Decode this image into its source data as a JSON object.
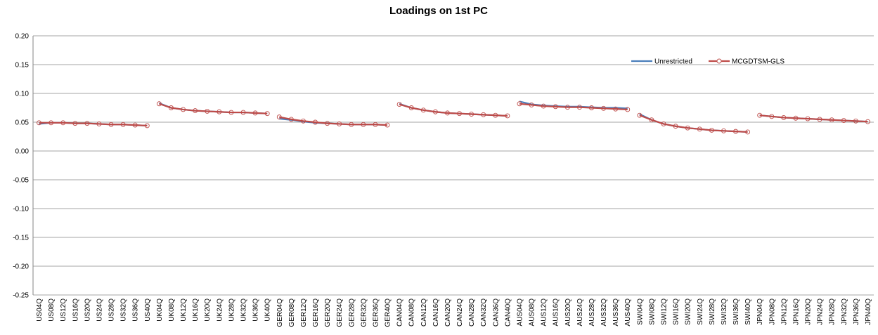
{
  "chart_data": {
    "type": "line",
    "title": "Loadings on 1st PC",
    "categories": [
      "US04Q",
      "US08Q",
      "US12Q",
      "US16Q",
      "US20Q",
      "US24Q",
      "US28Q",
      "US32Q",
      "US36Q",
      "US40Q",
      "UK04Q",
      "UK08Q",
      "UK12Q",
      "UK16Q",
      "UK20Q",
      "UK24Q",
      "UK28Q",
      "UK32Q",
      "UK36Q",
      "UK40Q",
      "GER04Q",
      "GER08Q",
      "GER12Q",
      "GER16Q",
      "GER20Q",
      "GER24Q",
      "GER28Q",
      "GER32Q",
      "GER36Q",
      "GER40Q",
      "CAN04Q",
      "CAN08Q",
      "CAN12Q",
      "CAN16Q",
      "CAN20Q",
      "CAN24Q",
      "CAN28Q",
      "CAN32Q",
      "CAN36Q",
      "CAN40Q",
      "AUS04Q",
      "AUS08Q",
      "AUS12Q",
      "AUS16Q",
      "AUS20Q",
      "AUS24Q",
      "AUS28Q",
      "AUS32Q",
      "AUS36Q",
      "AUS40Q",
      "SWI04Q",
      "SWI08Q",
      "SWI12Q",
      "SWI16Q",
      "SWI20Q",
      "SWI24Q",
      "SWI28Q",
      "SWI32Q",
      "SWI36Q",
      "SWI40Q",
      "JPN04Q",
      "JPN08Q",
      "JPN12Q",
      "JPN16Q",
      "JPN20Q",
      "JPN24Q",
      "JPN28Q",
      "JPN32Q",
      "JPN36Q",
      "JPN40Q"
    ],
    "series": [
      {
        "name": "Unrestricted",
        "color": "#4a7ebb",
        "marker": false,
        "values": [
          0.047,
          0.049,
          0.049,
          0.048,
          0.048,
          0.047,
          0.046,
          0.046,
          0.045,
          0.044,
          0.083,
          0.075,
          0.072,
          0.07,
          0.069,
          0.068,
          0.067,
          0.067,
          0.066,
          0.065,
          0.056,
          0.054,
          0.051,
          0.049,
          0.048,
          0.047,
          0.046,
          0.046,
          0.046,
          0.045,
          0.082,
          0.075,
          0.071,
          0.068,
          0.066,
          0.065,
          0.064,
          0.063,
          0.062,
          0.061,
          0.086,
          0.081,
          0.079,
          0.078,
          0.077,
          0.077,
          0.076,
          0.075,
          0.075,
          0.074,
          0.064,
          0.054,
          0.047,
          0.043,
          0.04,
          0.038,
          0.036,
          0.035,
          0.034,
          0.033,
          0.062,
          0.06,
          0.058,
          0.057,
          0.056,
          0.055,
          0.054,
          0.053,
          0.052,
          0.051
        ]
      },
      {
        "name": "MCGDTSM-GLS",
        "color": "#be4b48",
        "marker": true,
        "values": [
          0.049,
          0.049,
          0.049,
          0.048,
          0.048,
          0.047,
          0.046,
          0.046,
          0.045,
          0.044,
          0.082,
          0.075,
          0.072,
          0.07,
          0.069,
          0.068,
          0.067,
          0.067,
          0.066,
          0.065,
          0.059,
          0.055,
          0.052,
          0.05,
          0.048,
          0.047,
          0.046,
          0.046,
          0.046,
          0.045,
          0.081,
          0.075,
          0.071,
          0.068,
          0.066,
          0.065,
          0.064,
          0.063,
          0.062,
          0.061,
          0.082,
          0.08,
          0.078,
          0.077,
          0.076,
          0.076,
          0.075,
          0.074,
          0.073,
          0.072,
          0.062,
          0.054,
          0.047,
          0.043,
          0.04,
          0.038,
          0.036,
          0.035,
          0.034,
          0.033,
          0.062,
          0.06,
          0.058,
          0.057,
          0.056,
          0.055,
          0.054,
          0.053,
          0.052,
          0.051
        ]
      }
    ],
    "ylim": [
      -0.25,
      0.2
    ],
    "yticks": [
      {
        "value": -0.25,
        "label": "-0.25"
      },
      {
        "value": -0.2,
        "label": "-0.20"
      },
      {
        "value": -0.15,
        "label": "-0.15"
      },
      {
        "value": -0.1,
        "label": "-0.10"
      },
      {
        "value": -0.05,
        "label": "-0.05"
      },
      {
        "value": 0,
        "label": "0.00"
      },
      {
        "value": 0.05,
        "label": "0.05"
      },
      {
        "value": 0.1,
        "label": "0.10"
      },
      {
        "value": 0.15,
        "label": "0.15"
      },
      {
        "value": 0.2,
        "label": "0.20"
      }
    ],
    "grid": true,
    "legend": "top-right"
  }
}
